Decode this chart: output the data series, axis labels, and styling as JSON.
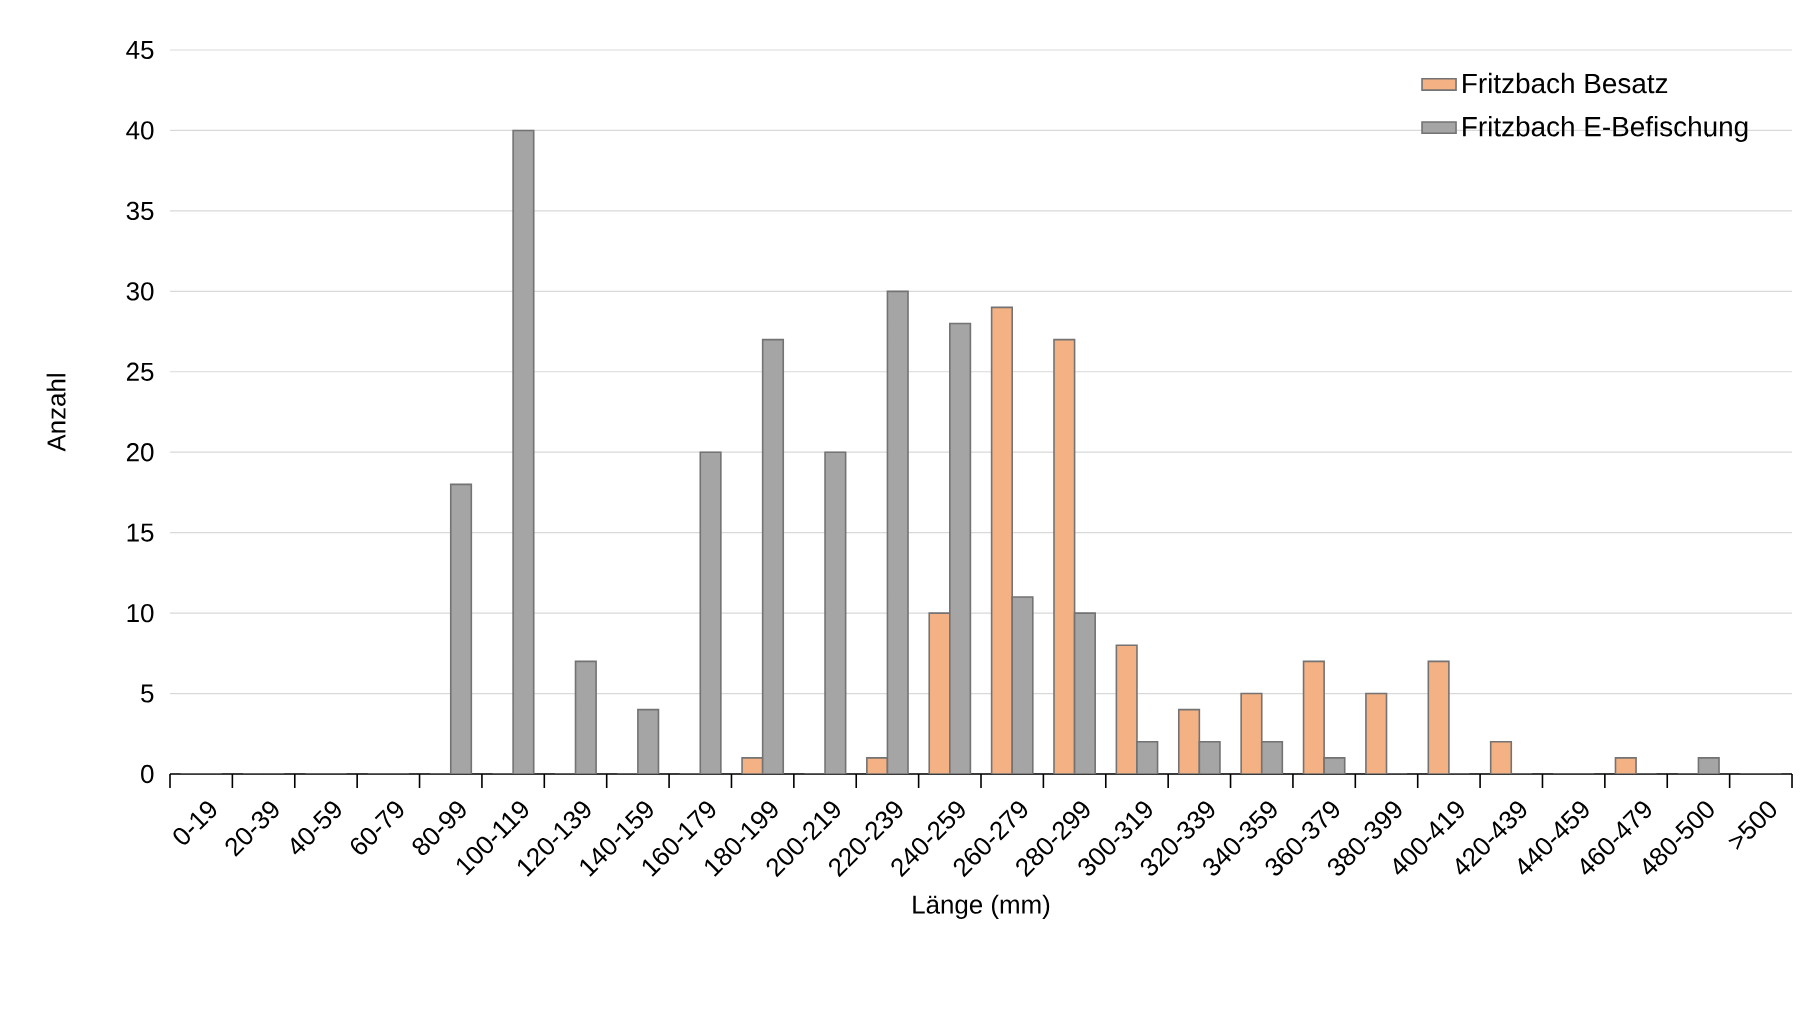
{
  "chart_data": {
    "type": "bar",
    "xlabel": "Länge (mm)",
    "ylabel": "Anzahl",
    "categories": [
      "0-19",
      "20-39",
      "40-59",
      "60-79",
      "80-99",
      "100-119",
      "120-139",
      "140-159",
      "160-179",
      "180-199",
      "200-219",
      "220-239",
      "240-259",
      "260-279",
      "280-299",
      "300-319",
      "320-339",
      "340-359",
      "360-379",
      "380-399",
      "400-419",
      "420-439",
      "440-459",
      "460-479",
      "480-500",
      ">500"
    ],
    "series": [
      {
        "name": "Fritzbach Besatz",
        "color": "#f4b183",
        "values": [
          0,
          0,
          0,
          0,
          0,
          0,
          0,
          0,
          0,
          1,
          0,
          1,
          10,
          29,
          27,
          8,
          4,
          5,
          7,
          5,
          7,
          2,
          0,
          1,
          0,
          0
        ]
      },
      {
        "name": "Fritzbach E-Befischung",
        "color": "#a5a5a5",
        "values": [
          0,
          0,
          0,
          0,
          18,
          40,
          7,
          4,
          20,
          27,
          20,
          30,
          28,
          11,
          10,
          2,
          2,
          2,
          1,
          0,
          0,
          0,
          0,
          0,
          1,
          0
        ]
      }
    ],
    "ylim": [
      0,
      45
    ],
    "yticks": [
      0,
      5,
      10,
      15,
      20,
      25,
      30,
      35,
      40,
      45
    ],
    "grid": "y",
    "legend": "top right"
  }
}
